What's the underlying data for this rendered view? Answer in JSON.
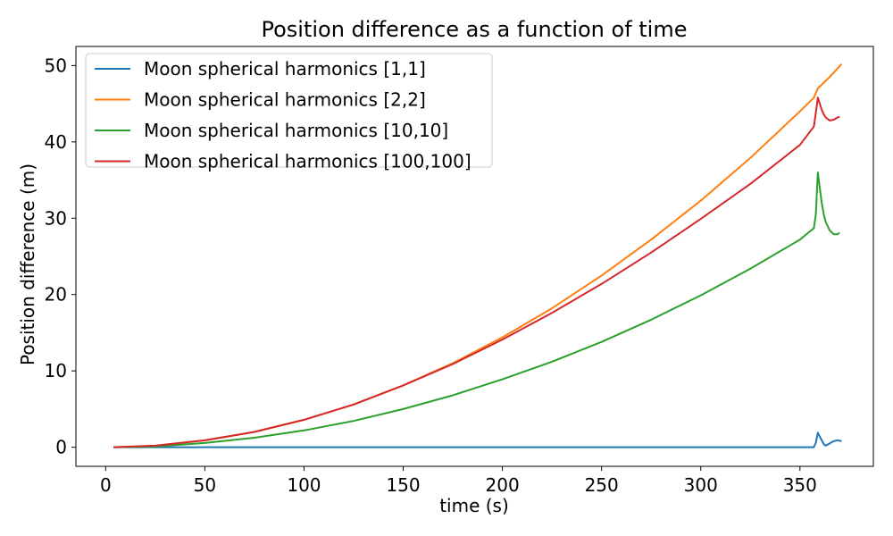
{
  "chart_data": {
    "type": "line",
    "title": "Position difference as a function of time",
    "xlabel": "time (s)",
    "ylabel": "Position difference (m)",
    "xlim": [
      -15,
      387
    ],
    "ylim": [
      -2.5,
      52.5
    ],
    "xticks": [
      0,
      50,
      100,
      150,
      200,
      250,
      300,
      350
    ],
    "yticks": [
      0,
      10,
      20,
      30,
      40,
      50
    ],
    "grid": false,
    "legend_position": "upper-left",
    "series": [
      {
        "name": "Moon spherical harmonics [1,1]",
        "color": "#1f77b4",
        "x": [
          4,
          50,
          100,
          150,
          200,
          250,
          300,
          350,
          357,
          358,
          359,
          360,
          361,
          362,
          363,
          365,
          367,
          369,
          371
        ],
        "y": [
          0,
          0,
          0,
          0,
          0,
          0,
          0,
          0,
          0,
          0.6,
          1.9,
          1.4,
          0.9,
          0.4,
          0.2,
          0.5,
          0.8,
          0.9,
          0.8
        ]
      },
      {
        "name": "Moon spherical harmonics [2,2]",
        "color": "#ff7f0e",
        "x": [
          4,
          25,
          50,
          75,
          100,
          125,
          150,
          175,
          200,
          225,
          250,
          275,
          300,
          325,
          350,
          357,
          359,
          365,
          371
        ],
        "y": [
          0,
          0.2,
          0.9,
          2.0,
          3.6,
          5.6,
          8.1,
          11.0,
          14.4,
          18.2,
          22.5,
          27.2,
          32.3,
          37.9,
          44.0,
          45.8,
          47.0,
          48.5,
          50.2
        ]
      },
      {
        "name": "Moon spherical harmonics [10,10]",
        "color": "#2ca02c",
        "x": [
          4,
          25,
          50,
          75,
          100,
          125,
          150,
          175,
          200,
          225,
          250,
          275,
          300,
          325,
          350,
          357,
          358,
          359,
          360,
          361,
          362,
          363,
          365,
          367,
          369,
          370
        ],
        "y": [
          0,
          0.1,
          0.55,
          1.25,
          2.2,
          3.45,
          5.0,
          6.8,
          8.9,
          11.2,
          13.8,
          16.7,
          19.9,
          23.4,
          27.2,
          28.7,
          30.5,
          36.0,
          34.0,
          32.0,
          30.5,
          29.5,
          28.4,
          27.9,
          27.9,
          28.1
        ]
      },
      {
        "name": "Moon spherical harmonics [100,100]",
        "color": "#d62728",
        "x": [
          4,
          25,
          50,
          75,
          100,
          125,
          150,
          175,
          200,
          225,
          250,
          275,
          300,
          325,
          350,
          357,
          358,
          359,
          360,
          361,
          362,
          363,
          365,
          367,
          369,
          370
        ],
        "y": [
          0,
          0.2,
          0.9,
          2.0,
          3.6,
          5.6,
          8.1,
          10.9,
          14.1,
          17.6,
          21.4,
          25.5,
          29.9,
          34.5,
          39.6,
          42.0,
          43.8,
          45.8,
          45.0,
          44.2,
          43.6,
          43.2,
          42.8,
          42.9,
          43.2,
          43.3
        ]
      }
    ]
  }
}
